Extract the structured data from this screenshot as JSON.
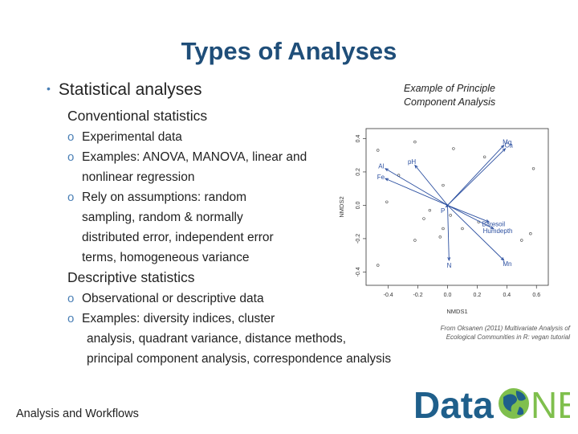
{
  "slide": {
    "title": "Types of Analyses",
    "bullet": "Statistical analyses",
    "conventional": {
      "heading": "Conventional statistics",
      "items": [
        {
          "marker": "o",
          "lines": [
            "Experimental data"
          ]
        },
        {
          "marker": "o",
          "lines": [
            "Examples: ANOVA, MANOVA, linear  and",
            "nonlinear regression"
          ]
        },
        {
          "marker": "o",
          "lines": [
            "Rely on assumptions: random",
            "sampling, random & normally",
            "distributed error, independent error",
            "terms, homogeneous variance"
          ]
        }
      ]
    },
    "descriptive": {
      "heading": "Descriptive statistics",
      "items": [
        {
          "marker": "o",
          "lines": [
            "Observational or descriptive data"
          ]
        },
        {
          "marker": "o",
          "lines": [
            "Examples: diversity indices, cluster",
            "analysis, quadrant variance, distance methods,",
            "principal component analysis, correspondence analysis"
          ]
        }
      ]
    },
    "caption": [
      "Example of Principle",
      "Component Analysis"
    ],
    "credit": [
      "From Oksanen (2011) Multivariate Analysis of",
      "Ecological Communities in R: vegan tutorial"
    ],
    "footer": "Analysis and Workflows",
    "logo_text": "DataONE",
    "colors": {
      "title": "#1f4e79",
      "accent": "#4a7fb5",
      "logo_green": "#7fbf4d",
      "logo_blue": "#1f5f8b"
    }
  },
  "chart_data": {
    "type": "scatter",
    "xlabel": "NMDS1",
    "ylabel": "NMDS2",
    "xticks": [
      "-0.4",
      "-0.2",
      "0.0",
      "0.2",
      "0.4",
      "0.6"
    ],
    "yticks": [
      "-0.4",
      "-0.2",
      "0.0",
      "0.2",
      "0.4"
    ],
    "xlim": [
      -0.55,
      0.68
    ],
    "ylim": [
      -0.48,
      0.46
    ],
    "points": [
      {
        "x": -0.47,
        "y": 0.33
      },
      {
        "x": -0.22,
        "y": 0.38
      },
      {
        "x": 0.04,
        "y": 0.34
      },
      {
        "x": 0.25,
        "y": 0.29
      },
      {
        "x": 0.58,
        "y": 0.22
      },
      {
        "x": -0.33,
        "y": 0.18
      },
      {
        "x": -0.03,
        "y": 0.12
      },
      {
        "x": -0.41,
        "y": 0.02
      },
      {
        "x": -0.12,
        "y": -0.03
      },
      {
        "x": 0.02,
        "y": -0.06
      },
      {
        "x": -0.16,
        "y": -0.08
      },
      {
        "x": 0.21,
        "y": -0.1
      },
      {
        "x": -0.03,
        "y": -0.14
      },
      {
        "x": 0.1,
        "y": -0.14
      },
      {
        "x": -0.22,
        "y": -0.21
      },
      {
        "x": -0.05,
        "y": -0.19
      },
      {
        "x": 0.5,
        "y": -0.21
      },
      {
        "x": -0.47,
        "y": -0.36
      },
      {
        "x": 0.56,
        "y": -0.17
      }
    ],
    "vectors": [
      {
        "label": "Mg",
        "x": 0.38,
        "y": 0.36
      },
      {
        "label": "Ca",
        "x": 0.39,
        "y": 0.34
      },
      {
        "label": "Al",
        "x": -0.42,
        "y": 0.22
      },
      {
        "label": "Fe",
        "x": -0.42,
        "y": 0.16
      },
      {
        "label": "pH",
        "x": -0.22,
        "y": 0.24
      },
      {
        "label": "Baresoil",
        "x": 0.28,
        "y": -0.1
      },
      {
        "label": "Humdepth",
        "x": 0.31,
        "y": -0.14
      },
      {
        "label": "Mn",
        "x": 0.38,
        "y": -0.33
      },
      {
        "label": "N",
        "x": 0.01,
        "y": -0.33
      },
      {
        "label": "P",
        "x": -0.01,
        "y": -0.01
      }
    ]
  }
}
